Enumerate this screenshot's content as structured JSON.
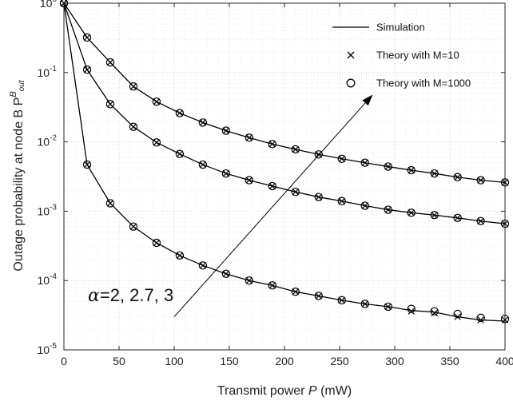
{
  "chart_data": {
    "type": "line",
    "xlabel": "Transmit power P (mW)",
    "xlabel_parts": {
      "pre": "Transmit power ",
      "var": "P",
      "post": " (mW)"
    },
    "ylabel": "Outage probability at node B P^B_out",
    "ylabel_parts": {
      "text": "Outage probability at node B  P",
      "sup": "B",
      "sub": "out"
    },
    "xlim": [
      0,
      400
    ],
    "ylim": [
      1e-05,
      1
    ],
    "yscale": "log",
    "grid": true,
    "minor_grid": true,
    "legend_position": "top-right",
    "xticks": [
      0,
      50,
      100,
      150,
      200,
      250,
      300,
      350,
      400
    ],
    "xtick_labels": [
      "0",
      "50",
      "100",
      "150",
      "200",
      "250",
      "300",
      "350",
      "400"
    ],
    "yticks": [
      1,
      0.1,
      0.01,
      0.001,
      0.0001,
      1e-05
    ],
    "ytick_labels": [
      {
        "base": "10",
        "exp": "0"
      },
      {
        "base": "10",
        "exp": "-1"
      },
      {
        "base": "10",
        "exp": "-2"
      },
      {
        "base": "10",
        "exp": "-3"
      },
      {
        "base": "10",
        "exp": "-4"
      },
      {
        "base": "10",
        "exp": "-5"
      }
    ],
    "legend": [
      {
        "label": "Simulation",
        "marker": "line"
      },
      {
        "label": "Theory with M=10",
        "marker": "cross"
      },
      {
        "label": "Theory with M=1000",
        "marker": "circle"
      }
    ],
    "x": [
      0,
      21,
      42,
      63,
      84,
      105,
      126,
      147,
      168,
      189,
      210,
      231,
      252,
      273,
      294,
      315,
      336,
      357,
      378,
      400
    ],
    "series": [
      {
        "alpha": "2",
        "values": [
          1,
          0.0047,
          0.0013,
          0.0006,
          0.00035,
          0.00023,
          0.000165,
          0.000125,
          0.0001,
          8.5e-05,
          6.9e-05,
          6e-05,
          5.2e-05,
          4.6e-05,
          4.2e-05,
          3.7e-05,
          3.5e-05,
          3e-05,
          2.7e-05,
          2.6e-05
        ],
        "theory_m10": [
          1,
          0.0047,
          0.0013,
          0.0006,
          0.00035,
          0.00023,
          0.000165,
          0.000125,
          0.0001,
          8.5e-05,
          6.9e-05,
          6e-05,
          5.2e-05,
          4.6e-05,
          4.2e-05,
          3.6e-05,
          3.4e-05,
          3e-05,
          2.7e-05,
          2.7e-05
        ],
        "theory_m1000": [
          1,
          0.0047,
          0.0013,
          0.0006,
          0.00035,
          0.00023,
          0.000165,
          0.000125,
          0.0001,
          8.5e-05,
          6.9e-05,
          6e-05,
          5.2e-05,
          4.6e-05,
          4.2e-05,
          3.9e-05,
          3.6e-05,
          3.3e-05,
          2.9e-05,
          2.8e-05
        ]
      },
      {
        "alpha": "2.7",
        "values": [
          1,
          0.11,
          0.035,
          0.0165,
          0.0098,
          0.0067,
          0.0047,
          0.0035,
          0.0028,
          0.0023,
          0.0019,
          0.0016,
          0.0014,
          0.0012,
          0.00105,
          0.00095,
          0.00088,
          0.0008,
          0.00072,
          0.00066
        ],
        "theory_m10": [
          1,
          0.11,
          0.035,
          0.0165,
          0.0098,
          0.0067,
          0.0047,
          0.0035,
          0.0028,
          0.0023,
          0.0019,
          0.0016,
          0.0014,
          0.0012,
          0.00105,
          0.00095,
          0.00088,
          0.0008,
          0.00072,
          0.00066
        ],
        "theory_m1000": [
          1,
          0.11,
          0.035,
          0.0165,
          0.0098,
          0.0067,
          0.0047,
          0.0035,
          0.0028,
          0.0023,
          0.0019,
          0.0016,
          0.0014,
          0.0012,
          0.00105,
          0.00095,
          0.00088,
          0.0008,
          0.00072,
          0.00066
        ]
      },
      {
        "alpha": "3",
        "values": [
          1,
          0.32,
          0.14,
          0.063,
          0.038,
          0.026,
          0.019,
          0.0145,
          0.0115,
          0.0093,
          0.0078,
          0.0066,
          0.0057,
          0.005,
          0.0044,
          0.0039,
          0.0035,
          0.0031,
          0.0028,
          0.0026
        ],
        "theory_m10": [
          1,
          0.32,
          0.14,
          0.063,
          0.038,
          0.026,
          0.019,
          0.0145,
          0.0115,
          0.0093,
          0.0078,
          0.0066,
          0.0057,
          0.005,
          0.0044,
          0.0039,
          0.0035,
          0.0031,
          0.0028,
          0.0026
        ],
        "theory_m1000": [
          1,
          0.32,
          0.14,
          0.063,
          0.038,
          0.026,
          0.019,
          0.0145,
          0.0115,
          0.0093,
          0.0078,
          0.0066,
          0.0057,
          0.005,
          0.0044,
          0.0039,
          0.0035,
          0.0031,
          0.0028,
          0.0026
        ]
      }
    ],
    "annotation": {
      "symbol": "α",
      "text": "=2, 2.7, 3",
      "arrow_from": [
        100,
        3e-05
      ],
      "arrow_to": [
        280,
        0.048
      ]
    }
  }
}
